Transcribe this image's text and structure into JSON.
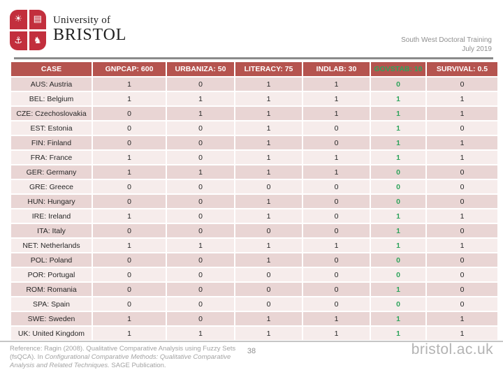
{
  "header": {
    "logo": {
      "line1": "University of",
      "line2": "BRISTOL",
      "crest_symbols": [
        "☀",
        "▤",
        "⚓",
        "♞"
      ]
    },
    "event_line1": "South West Doctoral Training",
    "event_line2": "July 2019"
  },
  "table": {
    "columns": [
      "CASE",
      "GNPCAP: 600",
      "URBANIZA: 50",
      "LITERACY: 75",
      "INDLAB: 30",
      "GOVSTAB: 10",
      "SURVIVAL: 0.5"
    ],
    "highlight_column": 5,
    "rows": [
      {
        "case": "AUS: Austria",
        "values": [
          1,
          0,
          1,
          1,
          0,
          0
        ]
      },
      {
        "case": "BEL: Belgium",
        "values": [
          1,
          1,
          1,
          1,
          1,
          1
        ]
      },
      {
        "case": "CZE: Czechoslovakia",
        "values": [
          0,
          1,
          1,
          1,
          1,
          1
        ]
      },
      {
        "case": "EST: Estonia",
        "values": [
          0,
          0,
          1,
          0,
          1,
          0
        ]
      },
      {
        "case": "FIN: Finland",
        "values": [
          0,
          0,
          1,
          0,
          1,
          1
        ]
      },
      {
        "case": "FRA: France",
        "values": [
          1,
          0,
          1,
          1,
          1,
          1
        ]
      },
      {
        "case": "GER: Germany",
        "values": [
          1,
          1,
          1,
          1,
          0,
          0
        ]
      },
      {
        "case": "GRE: Greece",
        "values": [
          0,
          0,
          0,
          0,
          0,
          0
        ]
      },
      {
        "case": "HUN: Hungary",
        "values": [
          0,
          0,
          1,
          0,
          0,
          0
        ]
      },
      {
        "case": "IRE: Ireland",
        "values": [
          1,
          0,
          1,
          0,
          1,
          1
        ]
      },
      {
        "case": "ITA: Italy",
        "values": [
          0,
          0,
          0,
          0,
          1,
          0
        ]
      },
      {
        "case": "NET: Netherlands",
        "values": [
          1,
          1,
          1,
          1,
          1,
          1
        ]
      },
      {
        "case": "POL: Poland",
        "values": [
          0,
          0,
          1,
          0,
          0,
          0
        ]
      },
      {
        "case": "POR: Portugal",
        "values": [
          0,
          0,
          0,
          0,
          0,
          0
        ]
      },
      {
        "case": "ROM: Romania",
        "values": [
          0,
          0,
          0,
          0,
          1,
          0
        ]
      },
      {
        "case": "SPA: Spain",
        "values": [
          0,
          0,
          0,
          0,
          0,
          0
        ]
      },
      {
        "case": "SWE: Sweden",
        "values": [
          1,
          0,
          1,
          1,
          1,
          1
        ]
      },
      {
        "case": "UK: United Kingdom",
        "values": [
          1,
          1,
          1,
          1,
          1,
          1
        ]
      }
    ]
  },
  "footer": {
    "reference_prefix": "Reference: Ragin (2008). Qualitative Comparative Analysis using Fuzzy Sets (fsQCA). In ",
    "reference_italic": "Configurational Comparative Methods: Qualitative Comparative Analysis and Related Techniques.",
    "reference_suffix": " SAGE Publication.",
    "page_number": "38",
    "site_url": "bristol.ac.uk"
  },
  "colors": {
    "logo_red": "#c22f3d",
    "table_header_bg": "#b5544f",
    "row_dark": "#e9d5d4",
    "row_light": "#f6eceb",
    "highlight_green": "#2fa45c"
  }
}
